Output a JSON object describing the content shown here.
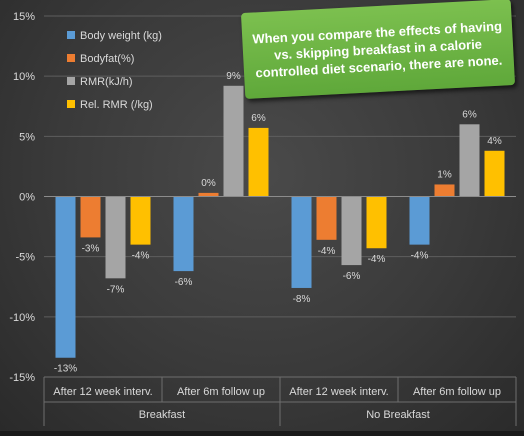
{
  "chart_data": {
    "type": "bar",
    "y_ticks": [
      "15%",
      "10%",
      "5%",
      "0%",
      "-5%",
      "-10%",
      "-15%"
    ],
    "ylim": [
      -15,
      15
    ],
    "tick_step": 5,
    "categories": [
      "After 12 week interv.",
      "After 6m follow up",
      "After 12 week interv.",
      "After 6m follow up"
    ],
    "groups": [
      "Breakfast",
      "No Breakfast"
    ],
    "legend_position": "top-left",
    "series": [
      {
        "name": "Body weight (kg)",
        "color": "#5b9bd5",
        "values": [
          -13.4,
          -6.2,
          -7.6,
          -4.0
        ],
        "labels": [
          "-13%",
          "-6%",
          "-8%",
          "-4%"
        ]
      },
      {
        "name": "Bodyfat(%)",
        "color": "#ed7d31",
        "values": [
          -3.4,
          0.3,
          -3.6,
          1.0
        ],
        "labels": [
          "-3%",
          "0%",
          "-4%",
          "1%"
        ]
      },
      {
        "name": "RMR(kJ/h)",
        "color": "#a5a5a5",
        "values": [
          -6.8,
          9.2,
          -5.7,
          6.0
        ],
        "labels": [
          "-7%",
          "9%",
          "-6%",
          "6%"
        ]
      },
      {
        "name": "Rel. RMR (/kg)",
        "color": "#ffc000",
        "values": [
          -4.0,
          5.7,
          -4.3,
          3.8
        ],
        "labels": [
          "-4%",
          "6%",
          "-4%",
          "4%"
        ]
      }
    ]
  },
  "callout": {
    "text": "When you compare the effects of having vs. skipping breakfast in a calorie controlled diet scenario, there are none."
  }
}
